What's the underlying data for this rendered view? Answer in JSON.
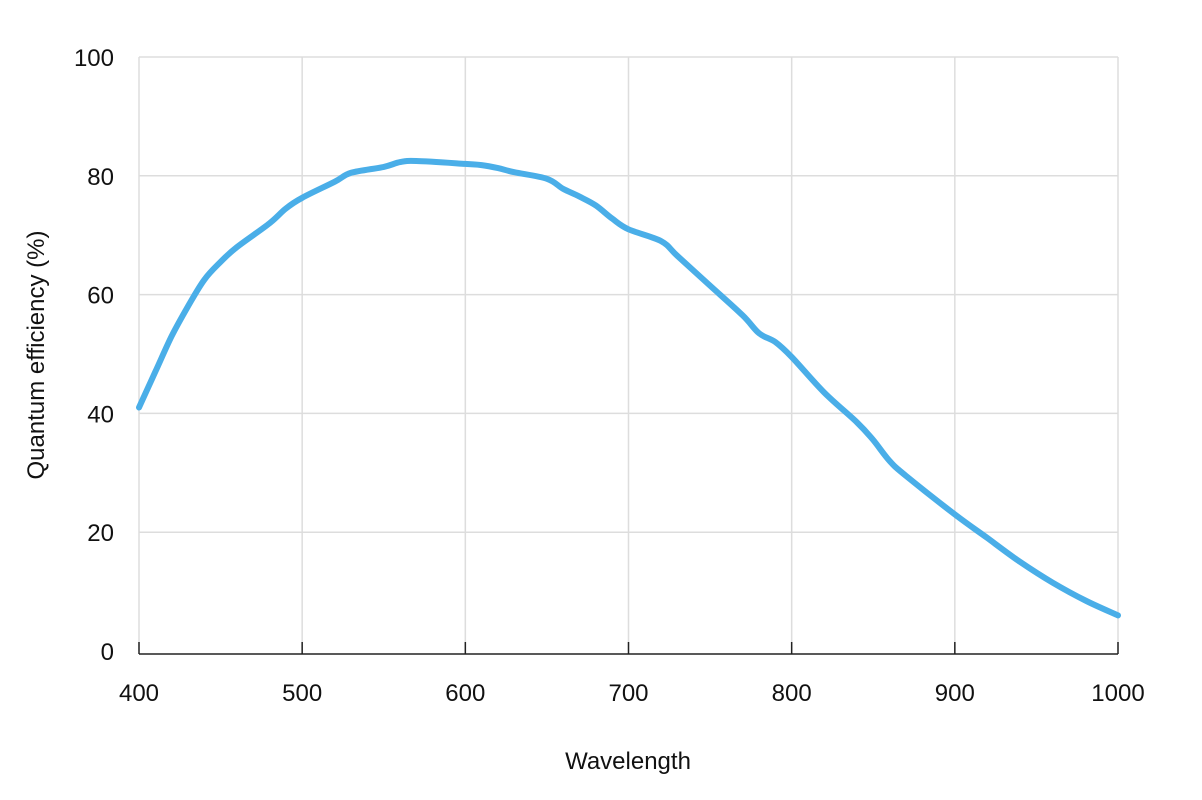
{
  "chart_data": {
    "type": "line",
    "title": "",
    "xlabel": "Wavelength",
    "ylabel": "Quantum efficiency (%)",
    "xlim": [
      400,
      1000
    ],
    "ylim": [
      0,
      100
    ],
    "x_ticks": [
      400,
      500,
      600,
      700,
      800,
      900,
      1000
    ],
    "y_ticks": [
      0,
      20,
      40,
      60,
      80,
      100
    ],
    "grid": true,
    "legend": null,
    "series": [
      {
        "name": "Quantum efficiency",
        "color": "#4aaee8",
        "x": [
          400,
          410,
          420,
          430,
          440,
          450,
          460,
          480,
          490,
          500,
          520,
          530,
          550,
          560,
          570,
          600,
          610,
          620,
          630,
          650,
          660,
          670,
          680,
          690,
          700,
          720,
          730,
          750,
          770,
          780,
          790,
          800,
          820,
          840,
          850,
          860,
          870,
          900,
          920,
          940,
          960,
          980,
          1000
        ],
        "y": [
          41,
          47,
          53,
          58,
          62.5,
          65.5,
          68,
          72,
          74.5,
          76.3,
          79,
          80.5,
          81.5,
          82.3,
          82.5,
          82,
          81.8,
          81.3,
          80.6,
          79.5,
          77.8,
          76.5,
          75,
          72.8,
          71,
          69,
          66.5,
          61.5,
          56.5,
          53.5,
          52,
          49.5,
          43.5,
          38.5,
          35.5,
          32,
          29.5,
          23,
          19,
          15,
          11.5,
          8.5,
          6
        ]
      }
    ]
  },
  "style": {
    "grid_color": "#dddddd",
    "axis_color": "#222222",
    "line_color": "#4aaee8"
  }
}
